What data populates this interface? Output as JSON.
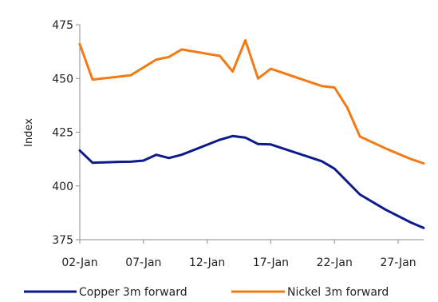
{
  "chart_data": {
    "type": "line",
    "title": "",
    "xlabel": "",
    "ylabel": "Index",
    "ylim": [
      375,
      475
    ],
    "yticks": [
      375,
      400,
      425,
      450,
      475
    ],
    "x_tick_labels": [
      "02-Jan",
      "07-Jan",
      "12-Jan",
      "17-Jan",
      "22-Jan",
      "27-Jan"
    ],
    "x_tick_days": [
      2,
      7,
      12,
      17,
      22,
      27
    ],
    "xlim": [
      2,
      29
    ],
    "grid": false,
    "legend_position": "bottom",
    "series": [
      {
        "name": "Copper 3m forward",
        "color": "#0c1a8c",
        "points": [
          [
            2,
            416.5
          ],
          [
            3,
            410.8
          ],
          [
            5,
            411.2
          ],
          [
            6,
            411.3
          ],
          [
            7,
            411.8
          ],
          [
            8,
            414.5
          ],
          [
            9,
            413.0
          ],
          [
            10,
            414.5
          ],
          [
            13,
            421.5
          ],
          [
            14,
            423.2
          ],
          [
            15,
            422.5
          ],
          [
            16,
            419.5
          ],
          [
            17,
            419.3
          ],
          [
            21,
            411.5
          ],
          [
            22,
            408.0
          ],
          [
            24,
            396.0
          ],
          [
            26,
            389.0
          ],
          [
            28,
            383.0
          ],
          [
            29,
            380.5
          ]
        ]
      },
      {
        "name": "Nickel 3m forward",
        "color": "#f47a14",
        "points": [
          [
            2,
            466.0
          ],
          [
            3,
            449.5
          ],
          [
            6,
            451.5
          ],
          [
            8,
            458.8
          ],
          [
            9,
            460.0
          ],
          [
            10,
            463.5
          ],
          [
            13,
            460.5
          ],
          [
            14,
            453.2
          ],
          [
            15,
            467.8
          ],
          [
            16,
            450.0
          ],
          [
            17,
            454.5
          ],
          [
            21,
            446.5
          ],
          [
            22,
            445.8
          ],
          [
            23,
            436.5
          ],
          [
            24,
            423.0
          ],
          [
            26,
            417.5
          ],
          [
            28,
            412.5
          ],
          [
            29,
            410.5
          ]
        ]
      }
    ]
  }
}
